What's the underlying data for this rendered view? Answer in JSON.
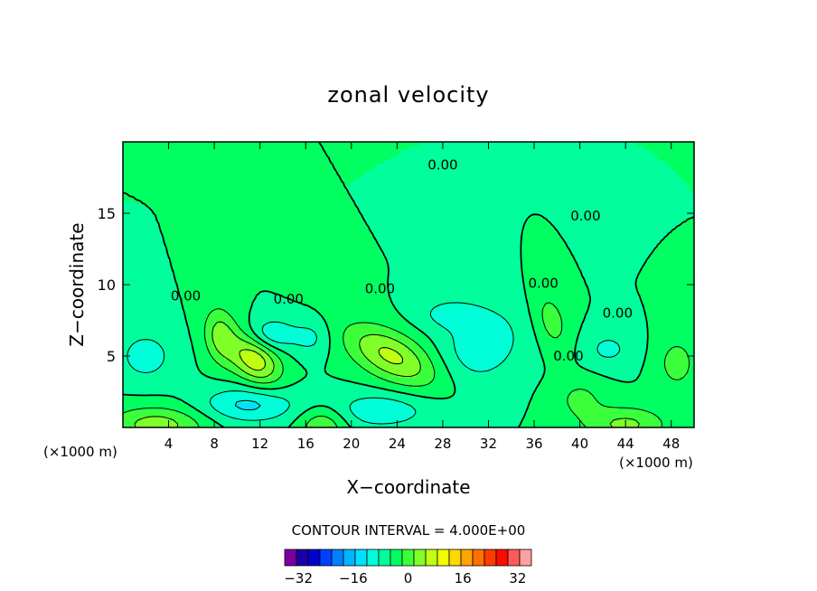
{
  "chart_data": {
    "type": "heatmap",
    "title": "zonal velocity",
    "xlabel": "X−coordinate",
    "ylabel": "Z−coordinate",
    "x_unit_left": "(×1000 m)",
    "x_unit_right": "(×1000 m)",
    "xlim": [
      0,
      50
    ],
    "ylim": [
      0,
      20
    ],
    "x_ticks": [
      4,
      8,
      12,
      16,
      20,
      24,
      28,
      32,
      36,
      40,
      44,
      48
    ],
    "y_ticks": [
      5,
      10,
      15
    ],
    "contour_interval_text": "CONTOUR INTERVAL = 4.000E+00",
    "contour_labels": [
      {
        "text": "0.00",
        "x": 28.0,
        "y": 18.4
      },
      {
        "text": "0.00",
        "x": 40.5,
        "y": 14.8
      },
      {
        "text": "0.00",
        "x": 36.8,
        "y": 10.1
      },
      {
        "text": "0.00",
        "x": 14.5,
        "y": 9.0
      },
      {
        "text": "0.00",
        "x": 22.5,
        "y": 9.7
      },
      {
        "text": "0.00",
        "x": 5.5,
        "y": 9.2
      },
      {
        "text": "0.00",
        "x": 43.3,
        "y": 8.0
      },
      {
        "text": "0.00",
        "x": 39.0,
        "y": 5.0
      }
    ],
    "color_scale": {
      "min": -36,
      "max": 36,
      "step": 4,
      "colors": [
        "#7a00a0",
        "#1a00a8",
        "#0000d0",
        "#0040ff",
        "#0080ff",
        "#00b4ff",
        "#00e0ff",
        "#00ffd8",
        "#00ff9c",
        "#00ff60",
        "#3cff3c",
        "#80ff28",
        "#c0ff10",
        "#f0ff00",
        "#ffd800",
        "#ffa400",
        "#ff7000",
        "#ff3c00",
        "#ff0a00",
        "#ff5a5a",
        "#ffa0a0"
      ],
      "tick_labels": [
        -32,
        -16,
        0,
        16,
        32
      ]
    },
    "field": {
      "background": 0,
      "features": [
        {
          "x": 11.5,
          "y": 4.8,
          "sx": 1.7,
          "sy": 1.1,
          "amp": 15,
          "rot": -0.5
        },
        {
          "x": 8.5,
          "y": 6.5,
          "sx": 1.0,
          "sy": 1.4,
          "amp": 9,
          "rot": 0.2
        },
        {
          "x": 23.5,
          "y": 5.0,
          "sx": 3.0,
          "sy": 1.2,
          "amp": 13,
          "rot": -0.35
        },
        {
          "x": 31.5,
          "y": 5.8,
          "sx": 2.6,
          "sy": 1.8,
          "amp": -7,
          "rot": 0.3
        },
        {
          "x": 13.0,
          "y": 6.5,
          "sx": 1.5,
          "sy": 0.8,
          "amp": -8,
          "rot": 0
        },
        {
          "x": 16.5,
          "y": 6.3,
          "sx": 1.2,
          "sy": 0.9,
          "amp": -5,
          "rot": 0
        },
        {
          "x": 2.0,
          "y": 5.0,
          "sx": 1.8,
          "sy": 1.3,
          "amp": -6,
          "rot": 0
        },
        {
          "x": 11.0,
          "y": 1.6,
          "sx": 3.0,
          "sy": 0.9,
          "amp": -9,
          "rot": 0
        },
        {
          "x": 22.5,
          "y": 1.2,
          "sx": 3.2,
          "sy": 0.9,
          "amp": -7,
          "rot": 0
        },
        {
          "x": 3.0,
          "y": 0.2,
          "sx": 3.0,
          "sy": 0.9,
          "amp": 10,
          "rot": 0
        },
        {
          "x": 17.5,
          "y": 0.2,
          "sx": 1.5,
          "sy": 0.9,
          "amp": 8,
          "rot": 0
        },
        {
          "x": 44.0,
          "y": 0.2,
          "sx": 2.5,
          "sy": 0.9,
          "amp": 9,
          "rot": 0
        },
        {
          "x": 37.5,
          "y": 7.5,
          "sx": 1.0,
          "sy": 1.6,
          "amp": 6,
          "rot": 0.4
        },
        {
          "x": 42.5,
          "y": 5.5,
          "sx": 1.5,
          "sy": 0.9,
          "amp": -5,
          "rot": 0
        },
        {
          "x": 48.5,
          "y": 4.5,
          "sx": 1.2,
          "sy": 1.3,
          "amp": 6,
          "rot": 0
        },
        {
          "x": 28.5,
          "y": 8.0,
          "sx": 2.0,
          "sy": 0.8,
          "amp": -5,
          "rot": 0
        },
        {
          "x": 40.0,
          "y": 2.0,
          "sx": 1.5,
          "sy": 1.0,
          "amp": 5,
          "rot": 0
        }
      ]
    }
  }
}
